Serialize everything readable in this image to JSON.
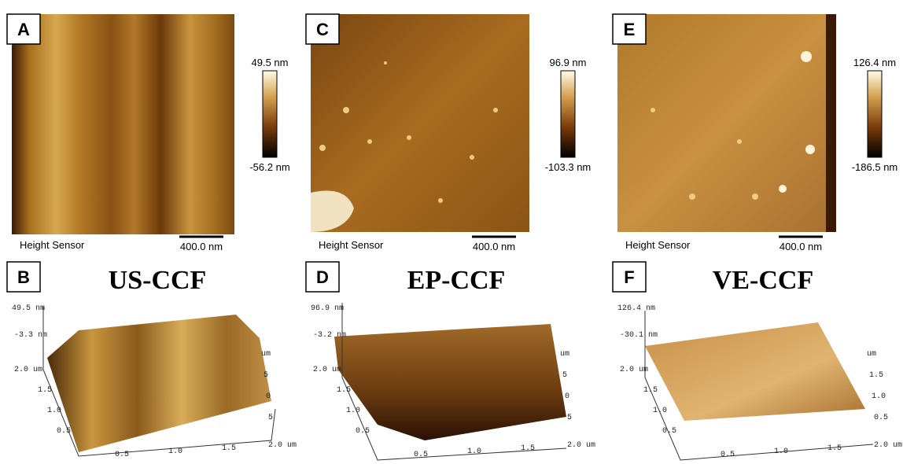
{
  "panels": [
    {
      "label": "A",
      "legend_max": "49.5 nm",
      "legend_min": "-56.2 nm",
      "sensor": "Height Sensor",
      "scale_bar": "400.0 nm"
    },
    {
      "label": "C",
      "legend_max": "96.9 nm",
      "legend_min": "-103.3 nm",
      "sensor": "Height Sensor",
      "scale_bar": "400.0 nm"
    },
    {
      "label": "E",
      "legend_max": "126.4 nm",
      "legend_min": "-186.5 nm",
      "sensor": "Height Sensor",
      "scale_bar": "400.0 nm"
    }
  ],
  "surfaces": [
    {
      "label": "B",
      "title": "US-CCF",
      "z_max": "49.5 nm",
      "z_mid": "-3.3 nm",
      "y_ticks": [
        "2.0 um",
        "1.5",
        "1.0",
        "0.5"
      ],
      "x_ticks": [
        "0.5",
        "1.0",
        "1.5",
        "2.0 um"
      ],
      "side_ticks": [
        "um",
        "5",
        "0",
        "5"
      ]
    },
    {
      "label": "D",
      "title": "EP-CCF",
      "z_max": "96.9 nm",
      "z_mid": "-3.2 nm",
      "y_ticks": [
        "2.0 um",
        "1.5",
        "1.0",
        "0.5"
      ],
      "x_ticks": [
        "0.5",
        "1.0",
        "1.5",
        "2.0 um"
      ],
      "side_ticks": [
        "um",
        "5",
        "0",
        "5"
      ]
    },
    {
      "label": "F",
      "title": "VE-CCF",
      "z_max": "126.4 nm",
      "z_mid": "-30.1 nm",
      "y_ticks": [
        "2.0 um",
        "1.5",
        "1.0",
        "0.5"
      ],
      "x_ticks": [
        "0.5",
        "1.0",
        "1.5",
        "2.0 um"
      ],
      "side_ticks": [
        "um",
        "1.5",
        "1.0",
        "0.5"
      ]
    }
  ]
}
